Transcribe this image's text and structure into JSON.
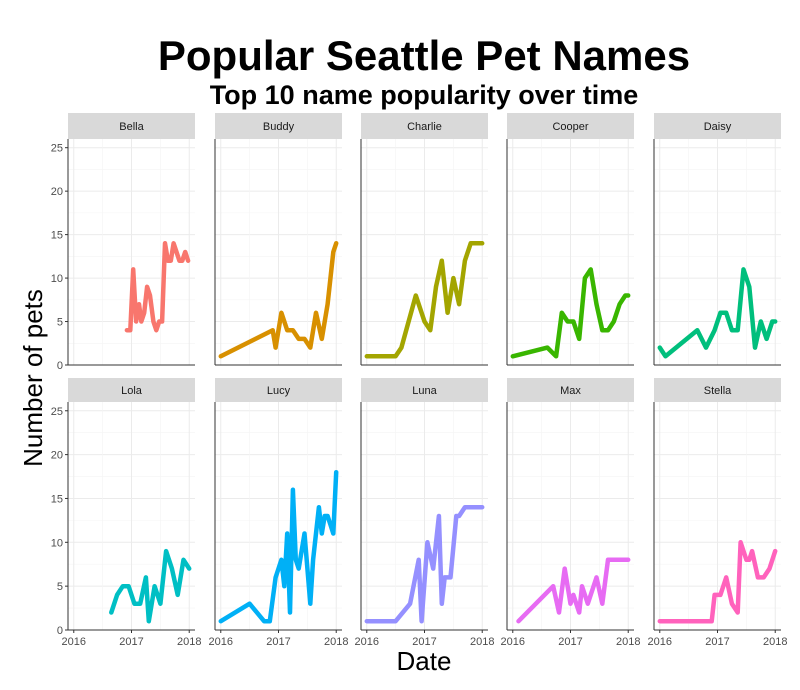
{
  "chart_data": {
    "type": "line",
    "title": "Popular Seattle Pet Names",
    "subtitle": "Top 10 name popularity over time",
    "xlabel": "Date",
    "ylabel": "Number of pets",
    "xlim": [
      2015.9,
      2018.1
    ],
    "ylim": [
      0,
      26
    ],
    "x_ticks": [
      2016,
      2017,
      2018
    ],
    "x_tick_labels": [
      "2016",
      "2017",
      "2018"
    ],
    "y_ticks": [
      0,
      5,
      10,
      15,
      20,
      25
    ],
    "y_tick_labels": [
      "0",
      "5",
      "10",
      "15",
      "20",
      "25"
    ],
    "grid": true,
    "legend": "none",
    "facets": {
      "rows": 2,
      "cols": 5
    },
    "series": [
      {
        "name": "Bella",
        "color": "#F8766D",
        "x": [
          2016.92,
          2016.98,
          2017.03,
          2017.08,
          2017.13,
          2017.17,
          2017.22,
          2017.27,
          2017.32,
          2017.38,
          2017.43,
          2017.48,
          2017.53,
          2017.58,
          2017.63,
          2017.68,
          2017.73,
          2017.78,
          2017.83,
          2017.88,
          2017.93,
          2017.98
        ],
        "values": [
          4,
          4,
          11,
          5,
          7,
          5,
          6,
          9,
          8,
          5,
          4,
          5,
          5,
          14,
          12,
          12,
          14,
          13,
          12,
          12,
          13,
          12
        ]
      },
      {
        "name": "Buddy",
        "color": "#D89000",
        "x": [
          2016.0,
          2016.9,
          2016.95,
          2017.05,
          2017.15,
          2017.25,
          2017.35,
          2017.45,
          2017.55,
          2017.65,
          2017.75,
          2017.85,
          2017.95,
          2018.0
        ],
        "values": [
          1,
          4,
          2,
          6,
          4,
          4,
          3,
          3,
          2,
          6,
          3,
          7,
          13,
          14
        ]
      },
      {
        "name": "Charlie",
        "color": "#A3A500",
        "x": [
          2016.0,
          2016.5,
          2016.6,
          2016.85,
          2016.95,
          2017.0,
          2017.1,
          2017.2,
          2017.3,
          2017.4,
          2017.5,
          2017.6,
          2017.7,
          2017.8,
          2017.9,
          2018.0
        ],
        "values": [
          1,
          1,
          2,
          8,
          6,
          5,
          4,
          9,
          12,
          6,
          10,
          7,
          12,
          14,
          14,
          14
        ]
      },
      {
        "name": "Cooper",
        "color": "#39B600",
        "x": [
          2016.0,
          2016.6,
          2016.75,
          2016.85,
          2016.95,
          2017.05,
          2017.15,
          2017.25,
          2017.35,
          2017.45,
          2017.55,
          2017.65,
          2017.75,
          2017.85,
          2017.95,
          2018.0
        ],
        "values": [
          1,
          2,
          1,
          6,
          5,
          5,
          3,
          10,
          11,
          7,
          4,
          4,
          5,
          7,
          8,
          8
        ]
      },
      {
        "name": "Daisy",
        "color": "#00BF7D",
        "x": [
          2016.0,
          2016.1,
          2016.65,
          2016.8,
          2016.95,
          2017.05,
          2017.15,
          2017.25,
          2017.35,
          2017.45,
          2017.55,
          2017.65,
          2017.75,
          2017.85,
          2017.95,
          2018.0
        ],
        "values": [
          2,
          1,
          4,
          2,
          4,
          6,
          6,
          4,
          4,
          11,
          9,
          2,
          5,
          3,
          5,
          5
        ]
      },
      {
        "name": "Lola",
        "color": "#00BFC4",
        "x": [
          2016.65,
          2016.75,
          2016.85,
          2016.95,
          2017.05,
          2017.15,
          2017.25,
          2017.3,
          2017.4,
          2017.5,
          2017.6,
          2017.7,
          2017.8,
          2017.9,
          2018.0
        ],
        "values": [
          2,
          4,
          5,
          5,
          3,
          3,
          6,
          1,
          5,
          3,
          9,
          7,
          4,
          8,
          7
        ]
      },
      {
        "name": "Lucy",
        "color": "#00B0F6",
        "x": [
          2016.0,
          2016.5,
          2016.75,
          2016.85,
          2016.95,
          2017.05,
          2017.1,
          2017.15,
          2017.2,
          2017.25,
          2017.3,
          2017.35,
          2017.45,
          2017.5,
          2017.55,
          2017.6,
          2017.7,
          2017.75,
          2017.8,
          2017.85,
          2017.9,
          2017.95,
          2018.0
        ],
        "values": [
          1,
          3,
          1,
          1,
          6,
          8,
          5,
          11,
          2,
          16,
          8,
          7,
          11,
          7,
          3,
          8,
          14,
          11,
          13,
          13,
          12,
          11,
          18
        ]
      },
      {
        "name": "Luna",
        "color": "#9590FF",
        "x": [
          2016.0,
          2016.5,
          2016.75,
          2016.9,
          2016.95,
          2017.05,
          2017.15,
          2017.25,
          2017.3,
          2017.35,
          2017.45,
          2017.55,
          2017.6,
          2017.7,
          2017.8,
          2017.9,
          2018.0
        ],
        "values": [
          1,
          1,
          3,
          8,
          1,
          10,
          7,
          13,
          3,
          6,
          6,
          13,
          13,
          14,
          14,
          14,
          14
        ]
      },
      {
        "name": "Max",
        "color": "#E76BF3",
        "x": [
          2016.1,
          2016.7,
          2016.8,
          2016.9,
          2017.0,
          2017.05,
          2017.15,
          2017.2,
          2017.3,
          2017.35,
          2017.45,
          2017.55,
          2017.65,
          2017.75,
          2017.85,
          2017.95,
          2018.0
        ],
        "values": [
          1,
          5,
          2,
          7,
          3,
          4,
          2,
          5,
          3,
          4,
          6,
          3,
          8,
          8,
          8,
          8,
          8
        ]
      },
      {
        "name": "Stella",
        "color": "#FF62BC",
        "x": [
          2016.0,
          2016.9,
          2016.95,
          2017.05,
          2017.15,
          2017.25,
          2017.35,
          2017.4,
          2017.5,
          2017.55,
          2017.6,
          2017.7,
          2017.8,
          2017.9,
          2018.0
        ],
        "values": [
          1,
          1,
          4,
          4,
          6,
          3,
          2,
          10,
          8,
          8,
          9,
          6,
          6,
          7,
          9
        ]
      }
    ]
  }
}
